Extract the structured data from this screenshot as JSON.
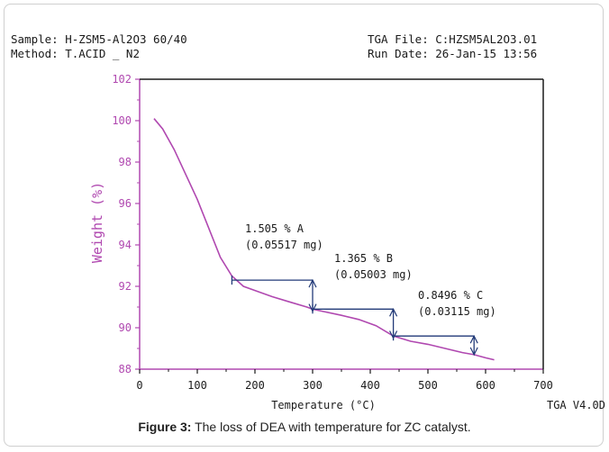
{
  "header": {
    "sample": "Sample: H-ZSM5-Al2O3 60/40",
    "method": "Method: T.ACID _ N2",
    "tga_file": "TGA File: C:HZSM5AL2O3.01",
    "run_date": "Run Date: 26-Jan-15 13:56"
  },
  "footer_note": "TGA V4.0D",
  "caption": {
    "label": "Figure 3:",
    "text": " The loss of DEA with temperature for ZC catalyst."
  },
  "chart_data": {
    "type": "line",
    "xlabel": "Temperature (°C)",
    "ylabel": "Weight (%)",
    "xlim": [
      0,
      700
    ],
    "ylim": [
      88,
      102
    ],
    "x_ticks": [
      "0",
      "100",
      "200",
      "300",
      "400",
      "500",
      "600",
      "700"
    ],
    "y_ticks": [
      "88",
      "90",
      "92",
      "94",
      "96",
      "98",
      "100",
      "102"
    ],
    "series": [
      {
        "color": "#b048b0",
        "points": [
          [
            25,
            100.1
          ],
          [
            40,
            99.6
          ],
          [
            60,
            98.6
          ],
          [
            80,
            97.4
          ],
          [
            100,
            96.2
          ],
          [
            120,
            94.8
          ],
          [
            140,
            93.4
          ],
          [
            160,
            92.5
          ],
          [
            180,
            92.0
          ],
          [
            200,
            91.8
          ],
          [
            230,
            91.5
          ],
          [
            260,
            91.25
          ],
          [
            290,
            91.0
          ],
          [
            300,
            90.9
          ],
          [
            320,
            90.78
          ],
          [
            350,
            90.6
          ],
          [
            380,
            90.4
          ],
          [
            410,
            90.1
          ],
          [
            440,
            89.6
          ],
          [
            470,
            89.35
          ],
          [
            500,
            89.2
          ],
          [
            530,
            89.0
          ],
          [
            560,
            88.8
          ],
          [
            580,
            88.7
          ],
          [
            600,
            88.55
          ],
          [
            615,
            88.45
          ]
        ]
      }
    ],
    "annotations": [
      {
        "id": "A",
        "text_line1": "1.505 % A",
        "text_line2": "(0.05517 mg)",
        "x_start": 160,
        "x_end": 300,
        "y_top": 92.3,
        "y_bottom": 90.8
      },
      {
        "id": "B",
        "text_line1": "1.365 % B",
        "text_line2": "(0.05003 mg)",
        "x_start": 300,
        "x_end": 440,
        "y_top": 90.9,
        "y_bottom": 89.5
      },
      {
        "id": "C",
        "text_line1": "0.8496 % C",
        "text_line2": "(0.03115 mg)",
        "x_start": 440,
        "x_end": 580,
        "y_top": 89.6,
        "y_bottom": 88.7
      }
    ],
    "grid": false
  }
}
